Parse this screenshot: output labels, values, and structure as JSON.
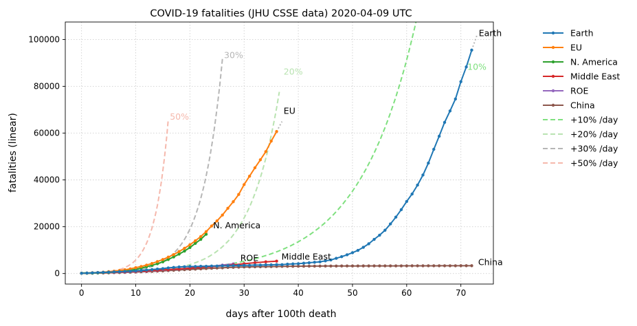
{
  "chart_data": {
    "type": "line",
    "title": "COVID-19 fatalities (JHU CSSE data) 2020-04-09 UTC",
    "xlabel": "days after 100th death",
    "ylabel": "fatalities (linear)",
    "xlim": [
      -3,
      76
    ],
    "ylim": [
      -4500,
      107500
    ],
    "xticks": [
      0,
      10,
      20,
      30,
      40,
      50,
      60,
      70
    ],
    "yticks": [
      0,
      20000,
      40000,
      60000,
      80000,
      100000
    ],
    "grid": true,
    "legend_position": "outside-right",
    "series": [
      {
        "name": "Earth",
        "color": "#1f77b4",
        "style": "solid-markers",
        "x": [
          0,
          1,
          2,
          3,
          4,
          5,
          6,
          7,
          8,
          9,
          10,
          11,
          12,
          13,
          14,
          15,
          16,
          17,
          18,
          19,
          20,
          21,
          22,
          23,
          24,
          25,
          26,
          27,
          28,
          29,
          30,
          31,
          32,
          33,
          34,
          35,
          36,
          37,
          38,
          39,
          40,
          41,
          42,
          43,
          44,
          45,
          46,
          47,
          48,
          49,
          50,
          51,
          52,
          53,
          54,
          55,
          56,
          57,
          58,
          59,
          60,
          61,
          62,
          63,
          64,
          65,
          66,
          67,
          68,
          69,
          70,
          71,
          72
        ],
        "y": [
          100,
          200,
          300,
          400,
          500,
          600,
          700,
          800,
          900,
          1000,
          1100,
          1300,
          1500,
          1700,
          1900,
          2100,
          2400,
          2600,
          2800,
          2900,
          3000,
          3000,
          3100,
          3100,
          3200,
          3200,
          3300,
          3300,
          3400,
          3400,
          3500,
          3500,
          3600,
          3600,
          3700,
          3700,
          3800,
          3800,
          4000,
          4100,
          4200,
          4400,
          4600,
          4800,
          5000,
          5400,
          5800,
          6500,
          7200,
          8000,
          8900,
          9900,
          11200,
          12700,
          14600,
          16400,
          18500,
          21200,
          24100,
          27300,
          30800,
          34000,
          37800,
          42100,
          47200,
          53100,
          58700,
          64600,
          69500,
          74600,
          82000,
          88300,
          95500
        ]
      },
      {
        "name": "EU",
        "color": "#ff7f0e",
        "style": "solid-markers",
        "x": [
          0,
          1,
          2,
          3,
          4,
          5,
          6,
          7,
          8,
          9,
          10,
          11,
          12,
          13,
          14,
          15,
          16,
          17,
          18,
          19,
          20,
          21,
          22,
          23,
          24,
          25,
          26,
          27,
          28,
          29,
          30,
          31,
          32,
          33,
          34,
          35,
          36
        ],
        "y": [
          100,
          200,
          350,
          450,
          600,
          800,
          1000,
          1300,
          1600,
          2000,
          2500,
          3000,
          3600,
          4300,
          5100,
          6000,
          7000,
          8100,
          9400,
          10800,
          12300,
          14000,
          15800,
          17900,
          20300,
          22500,
          25000,
          27900,
          30700,
          33800,
          38000,
          41600,
          45200,
          48600,
          52100,
          56600,
          60700
        ]
      },
      {
        "name": "N. America",
        "color": "#2ca02c",
        "style": "solid-markers",
        "x": [
          0,
          1,
          2,
          3,
          4,
          5,
          6,
          7,
          8,
          9,
          10,
          11,
          12,
          13,
          14,
          15,
          16,
          17,
          18,
          19,
          20,
          21,
          22,
          23
        ],
        "y": [
          100,
          150,
          200,
          300,
          400,
          500,
          650,
          850,
          1100,
          1400,
          1800,
          2300,
          2900,
          3500,
          4200,
          5000,
          6000,
          7100,
          8300,
          9600,
          11100,
          12900,
          14600,
          16800
        ]
      },
      {
        "name": "Middle East",
        "color": "#d62728",
        "style": "solid-markers",
        "x": [
          0,
          2,
          4,
          6,
          8,
          10,
          12,
          14,
          16,
          18,
          20,
          22,
          24,
          26,
          28,
          30,
          32,
          34,
          36
        ],
        "y": [
          100,
          200,
          300,
          500,
          700,
          900,
          1100,
          1400,
          1700,
          2000,
          2300,
          2600,
          2900,
          3300,
          3700,
          4200,
          4600,
          5000,
          5300
        ]
      },
      {
        "name": "ROE",
        "color": "#9467bd",
        "style": "solid-markers",
        "x": [
          0,
          2,
          4,
          6,
          8,
          10,
          12,
          14,
          16,
          18,
          20,
          22,
          24,
          26,
          28
        ],
        "y": [
          100,
          200,
          300,
          400,
          600,
          800,
          1000,
          1300,
          1600,
          1900,
          2300,
          2700,
          3100,
          3600,
          4100
        ]
      },
      {
        "name": "China",
        "color": "#8c564b",
        "style": "solid-markers",
        "x": [
          0,
          1,
          2,
          3,
          4,
          5,
          6,
          7,
          8,
          9,
          10,
          11,
          12,
          13,
          14,
          15,
          16,
          17,
          18,
          19,
          20,
          21,
          22,
          23,
          24,
          25,
          26,
          27,
          28,
          29,
          30,
          31,
          32,
          33,
          34,
          35,
          36,
          37,
          38,
          39,
          40,
          41,
          42,
          43,
          44,
          45,
          46,
          47,
          48,
          49,
          50,
          51,
          52,
          53,
          54,
          55,
          56,
          57,
          58,
          59,
          60,
          61,
          62,
          63,
          64,
          65,
          66,
          67,
          68,
          69,
          70,
          71,
          72
        ],
        "y": [
          100,
          130,
          170,
          210,
          260,
          300,
          360,
          420,
          490,
          560,
          640,
          720,
          810,
          900,
          1010,
          1110,
          1260,
          1380,
          1520,
          1670,
          1770,
          1870,
          2000,
          2120,
          2240,
          2340,
          2440,
          2590,
          2660,
          2720,
          2790,
          2830,
          2870,
          2910,
          2940,
          2980,
          3010,
          3040,
          3070,
          3100,
          3120,
          3140,
          3160,
          3170,
          3180,
          3190,
          3200,
          3210,
          3220,
          3230,
          3240,
          3240,
          3250,
          3250,
          3260,
          3260,
          3270,
          3270,
          3270,
          3280,
          3280,
          3290,
          3290,
          3290,
          3300,
          3300,
          3310,
          3310,
          3320,
          3320,
          3330,
          3330,
          3330
        ]
      },
      {
        "name": "+10% /day",
        "color": "#7fe07f",
        "style": "dashed",
        "growth": 0.1,
        "start": 300,
        "x0": 0,
        "x1": 72
      },
      {
        "name": "+20% /day",
        "color": "#b9e3b1",
        "style": "dashed",
        "growth": 0.2,
        "start": 100,
        "x0": 0,
        "x1": 36.5
      },
      {
        "name": "+30% /day",
        "color": "#b6b6b6",
        "style": "dashed",
        "growth": 0.3,
        "start": 100,
        "x0": 0,
        "x1": 26
      },
      {
        "name": "+50% /day",
        "color": "#f5b8ac",
        "style": "dashed",
        "growth": 0.5,
        "start": 100,
        "x0": 0,
        "x1": 16
      }
    ],
    "annotations": [
      {
        "text": "Earth",
        "x": 73.3,
        "y": 101500,
        "color": "#000000"
      },
      {
        "text": "EU",
        "x": 37.3,
        "y": 68300,
        "color": "#000000"
      },
      {
        "text": "N. America",
        "x": 24.3,
        "y": 19300,
        "color": "#000000"
      },
      {
        "text": "Middle East",
        "x": 36.9,
        "y": 6000,
        "color": "#000000"
      },
      {
        "text": "ROE",
        "x": 29.3,
        "y": 5400,
        "color": "#000000"
      },
      {
        "text": "China",
        "x": 73.2,
        "y": 3600,
        "color": "#000000"
      },
      {
        "text": "10%",
        "x": 71.2,
        "y": 87000,
        "color": "#7fe07f"
      },
      {
        "text": "20%",
        "x": 37.3,
        "y": 85000,
        "color": "#b9e3b1"
      },
      {
        "text": "30%",
        "x": 26.3,
        "y": 92000,
        "color": "#b6b6b6"
      },
      {
        "text": "50%",
        "x": 16.3,
        "y": 65700,
        "color": "#f5b8ac"
      }
    ],
    "extensions": [
      {
        "series": "Earth",
        "color": "#b6b6b6",
        "x": [
          72,
          73
        ],
        "y": [
          95500,
          102000
        ]
      },
      {
        "series": "EU",
        "color": "#b6b6b6",
        "x": [
          36,
          37
        ],
        "y": [
          60700,
          65000
        ]
      }
    ]
  }
}
